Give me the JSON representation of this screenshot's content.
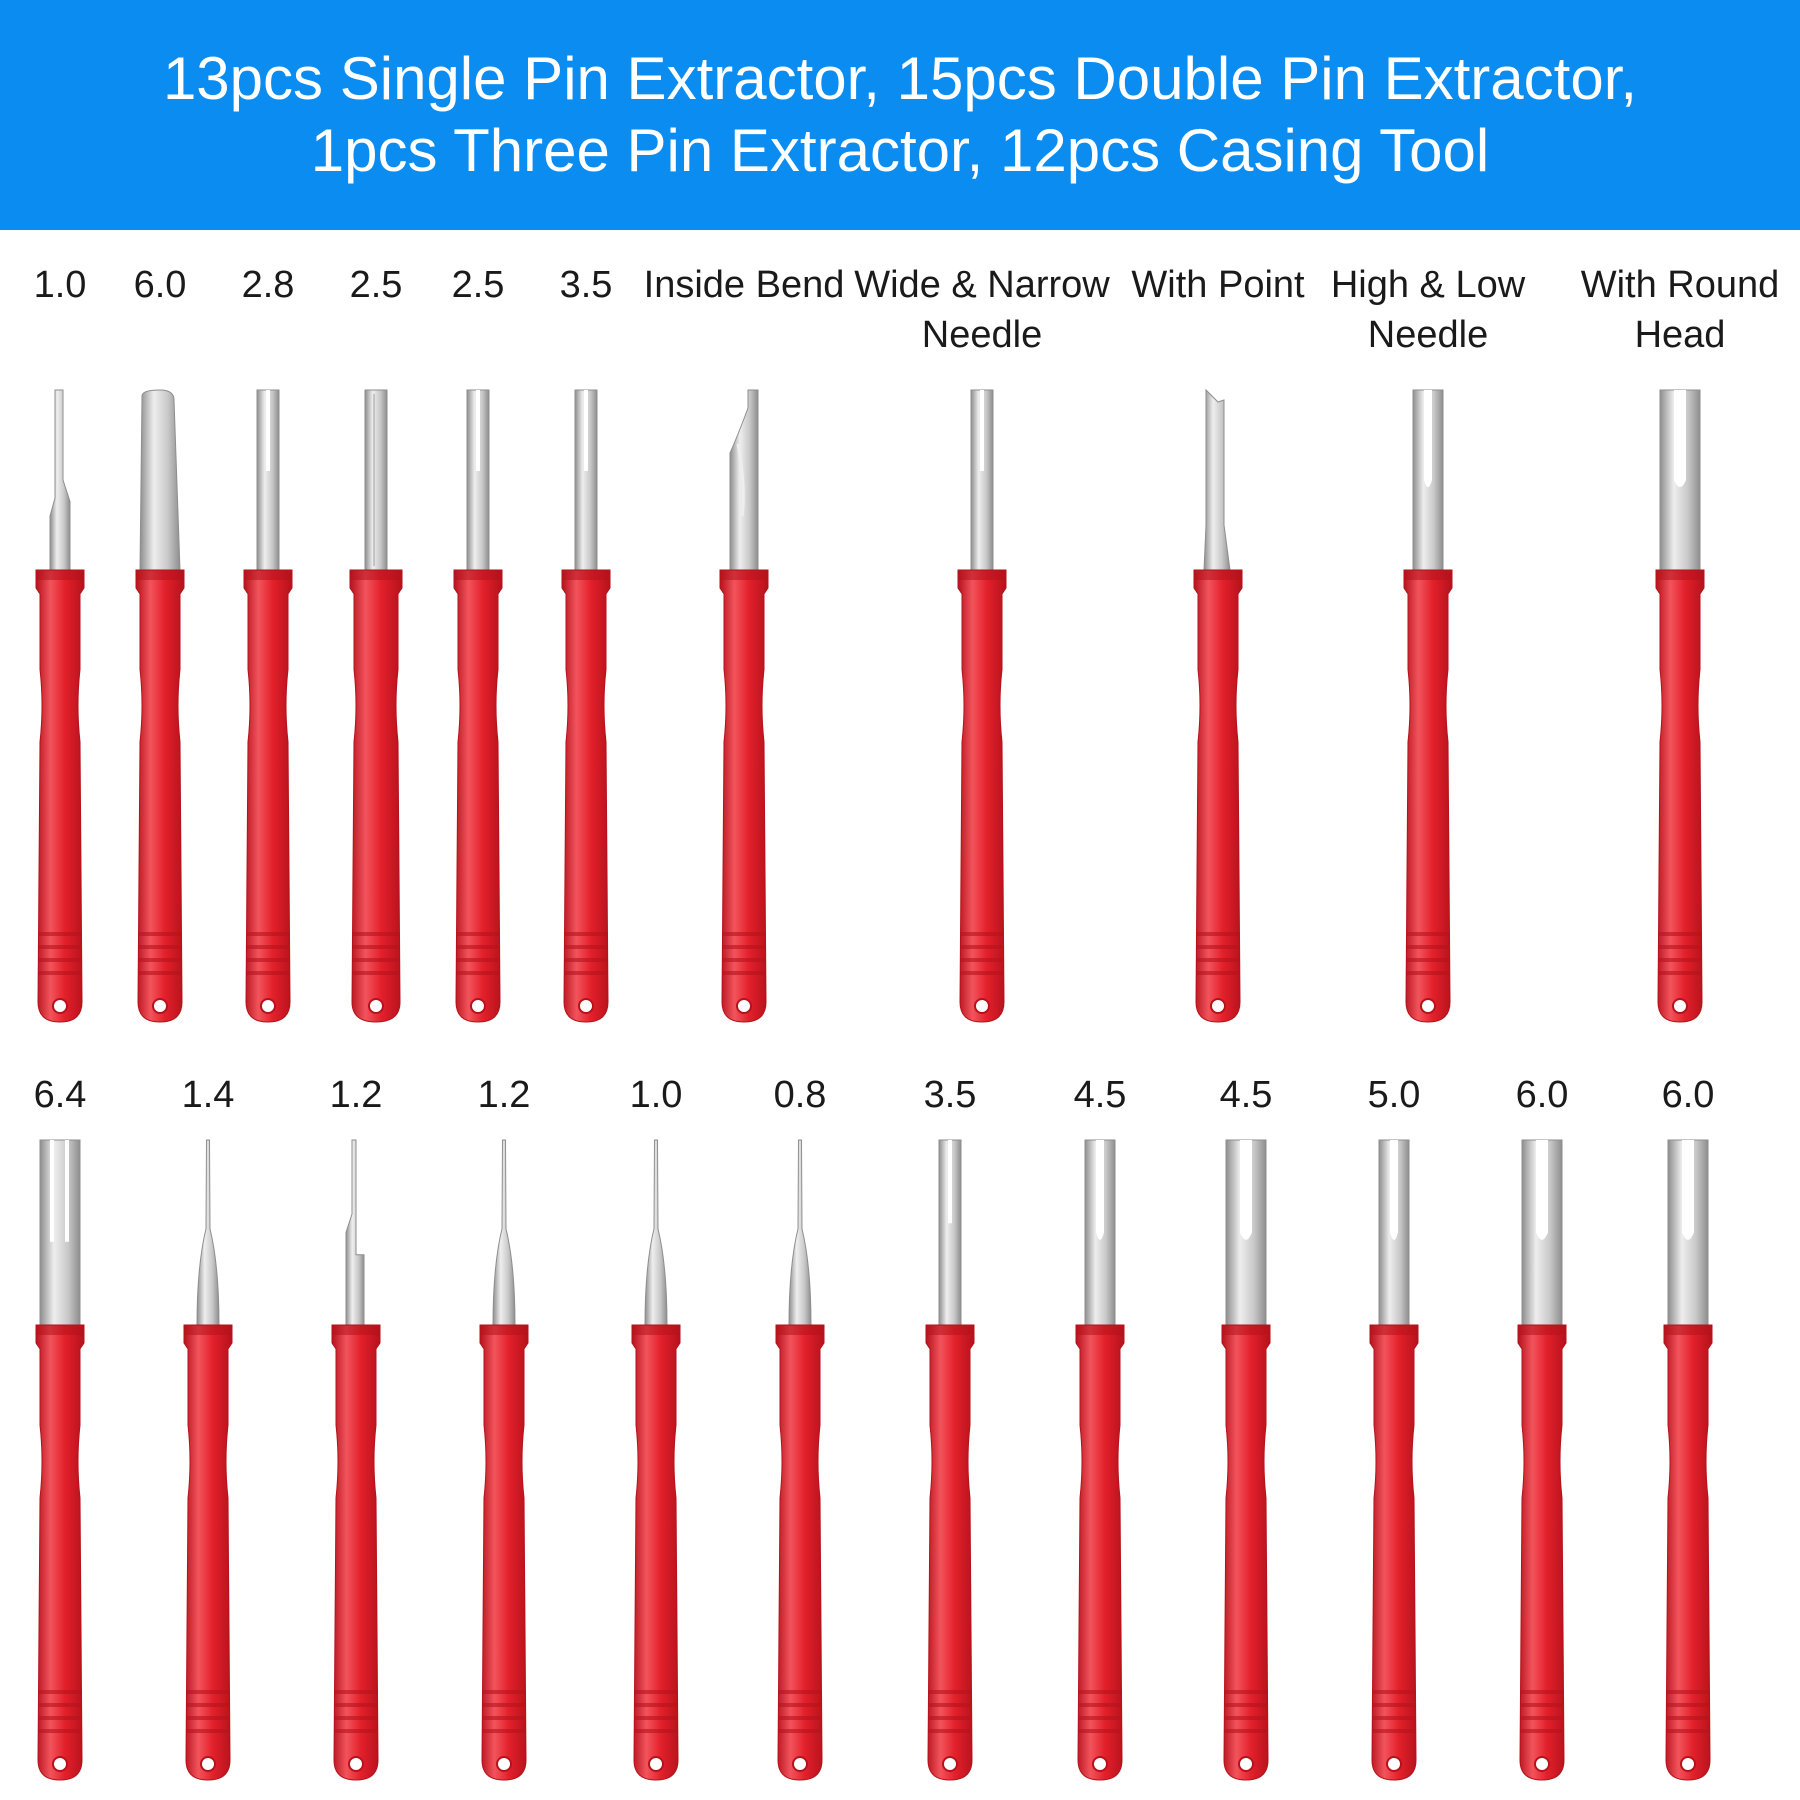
{
  "banner": {
    "line1": "13pcs Single Pin Extractor, 15pcs Double Pin Extractor,",
    "line2": "1pcs Three Pin Extractor, 12pcs Casing Tool"
  },
  "colors": {
    "banner": "#0a8cf0",
    "handle": "#e3202b",
    "handle_dark": "#b5121c",
    "handle_light": "#f2545c",
    "metal": "#c8c8c8",
    "metal_light": "#eeeeee",
    "metal_dark": "#8e8e8e"
  },
  "rows": [
    {
      "tools": [
        {
          "label": "1.0",
          "tip": "needle-notch"
        },
        {
          "label": "6.0",
          "tip": "wide-blade"
        },
        {
          "label": "2.8",
          "tip": "slot"
        },
        {
          "label": "2.5",
          "tip": "tube"
        },
        {
          "label": "2.5",
          "tip": "slot"
        },
        {
          "label": "3.5",
          "tip": "slot"
        },
        {
          "label": "Inside Bend",
          "tip": "bend"
        },
        {
          "label": "Wide & Narrow Needle",
          "tip": "slot"
        },
        {
          "label": "With Point",
          "tip": "point-blade"
        },
        {
          "label": "High & Low Needle",
          "tip": "fork"
        },
        {
          "label": "With Round Head",
          "tip": "fork-wide"
        }
      ]
    },
    {
      "tools": [
        {
          "label": "6.4",
          "tip": "three-prong"
        },
        {
          "label": "1.4",
          "tip": "needle"
        },
        {
          "label": "1.2",
          "tip": "needle-flat"
        },
        {
          "label": "1.2",
          "tip": "needle"
        },
        {
          "label": "1.0",
          "tip": "needle"
        },
        {
          "label": "0.8",
          "tip": "needle"
        },
        {
          "label": "3.5",
          "tip": "slot"
        },
        {
          "label": "4.5",
          "tip": "fork"
        },
        {
          "label": "4.5",
          "tip": "fork-wide"
        },
        {
          "label": "5.0",
          "tip": "fork"
        },
        {
          "label": "6.0",
          "tip": "fork-wide"
        },
        {
          "label": "6.0",
          "tip": "fork-wide"
        }
      ]
    }
  ]
}
